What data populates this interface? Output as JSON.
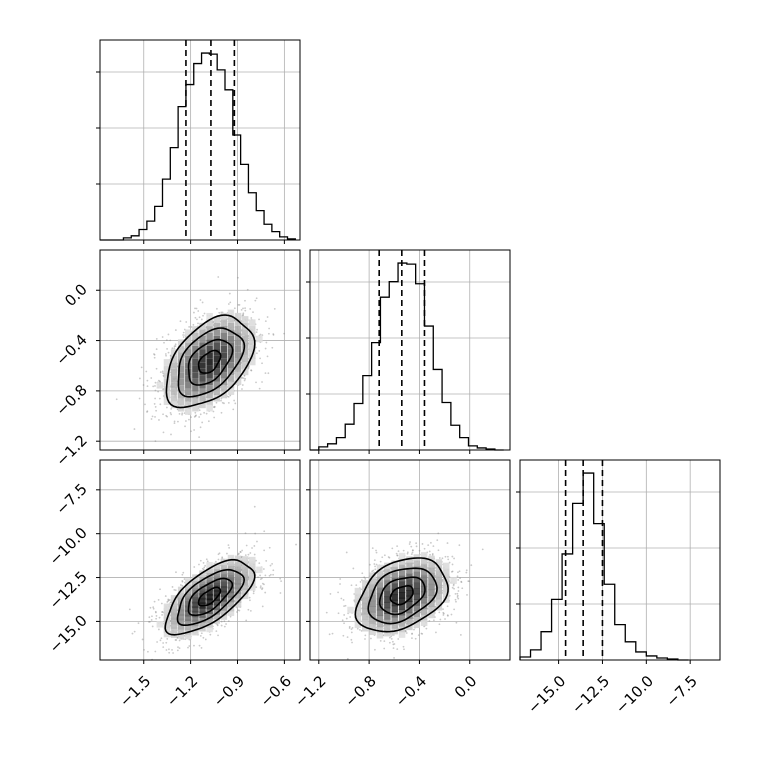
{
  "chart_data": {
    "type": "corner",
    "parameters": [
      {
        "range": [
          -1.78,
          -0.5
        ],
        "ticks": [
          -1.5,
          -1.2,
          -0.9,
          -0.6
        ],
        "tick_labels": [
          "−1.5",
          "−1.2",
          "−0.9",
          "−0.6"
        ],
        "quantiles": [
          -1.23,
          -1.07,
          -0.92
        ],
        "hist_bin_edges": [
          -1.78,
          -1.73,
          -1.68,
          -1.63,
          -1.58,
          -1.53,
          -1.48,
          -1.43,
          -1.38,
          -1.33,
          -1.28,
          -1.23,
          -1.18,
          -1.13,
          -1.08,
          -1.03,
          -0.98,
          -0.93,
          -0.88,
          -0.83,
          -0.78,
          -0.73,
          -0.68,
          -0.63,
          -0.58,
          -0.53
        ],
        "hist_counts": [
          0,
          0,
          0,
          2,
          4,
          10,
          18,
          32,
          58,
          88,
          127,
          148,
          168,
          178,
          177,
          162,
          143,
          100,
          72,
          45,
          28,
          15,
          8,
          3,
          1
        ]
      },
      {
        "range": [
          -1.27,
          0.32
        ],
        "ticks": [
          -1.2,
          -0.8,
          -0.4,
          0.0
        ],
        "tick_labels": [
          "−1.2",
          "−0.8",
          "−0.4",
          "0.0"
        ],
        "quantiles": [
          -0.72,
          -0.54,
          -0.36
        ],
        "hist_bin_edges": [
          -1.27,
          -1.2,
          -1.13,
          -1.06,
          -0.99,
          -0.92,
          -0.85,
          -0.78,
          -0.71,
          -0.64,
          -0.57,
          -0.5,
          -0.43,
          -0.36,
          -0.29,
          -0.22,
          -0.15,
          -0.08,
          -0.01,
          0.06,
          0.13,
          0.2,
          0.27
        ],
        "hist_counts": [
          0,
          3,
          6,
          12,
          25,
          45,
          72,
          104,
          148,
          163,
          181,
          180,
          161,
          120,
          78,
          46,
          24,
          12,
          4,
          2,
          1,
          0
        ]
      },
      {
        "range": [
          -17.2,
          -5.8
        ],
        "ticks": [
          -15.0,
          -12.5,
          -10.0,
          -7.5
        ],
        "tick_labels": [
          "−15.0",
          "−12.5",
          "−10.0",
          "−7.5"
        ],
        "quantiles": [
          -14.6,
          -13.6,
          -12.5
        ],
        "hist_bin_edges": [
          -17.2,
          -16.6,
          -16.0,
          -15.4,
          -14.8,
          -14.2,
          -13.6,
          -13.0,
          -12.4,
          -11.8,
          -11.2,
          -10.6,
          -10.0,
          -9.4,
          -8.8,
          -8.2,
          -7.6
        ],
        "hist_counts": [
          3,
          10,
          28,
          60,
          105,
          155,
          185,
          135,
          75,
          35,
          18,
          8,
          4,
          2,
          1,
          0
        ]
      }
    ],
    "pairs": [
      {
        "x_param": 0,
        "y_param": 1,
        "center": [
          -1.08,
          -0.57
        ],
        "sd": [
          0.14,
          0.18
        ],
        "rho": 0.45,
        "levels": [
          0.5,
          1.0,
          1.5,
          2.0
        ]
      },
      {
        "x_param": 0,
        "y_param": 2,
        "center": [
          -1.08,
          -13.6
        ],
        "sd": [
          0.14,
          1.05
        ],
        "rho": 0.65,
        "levels": [
          0.5,
          1.0,
          1.5,
          2.0
        ]
      },
      {
        "x_param": 1,
        "y_param": 2,
        "center": [
          -0.54,
          -13.5
        ],
        "sd": [
          0.18,
          1.05
        ],
        "rho": 0.35,
        "levels": [
          0.5,
          1.0,
          1.5,
          2.0
        ]
      }
    ],
    "grid": true,
    "title": "",
    "axis_labels": [
      "",
      "",
      ""
    ]
  }
}
